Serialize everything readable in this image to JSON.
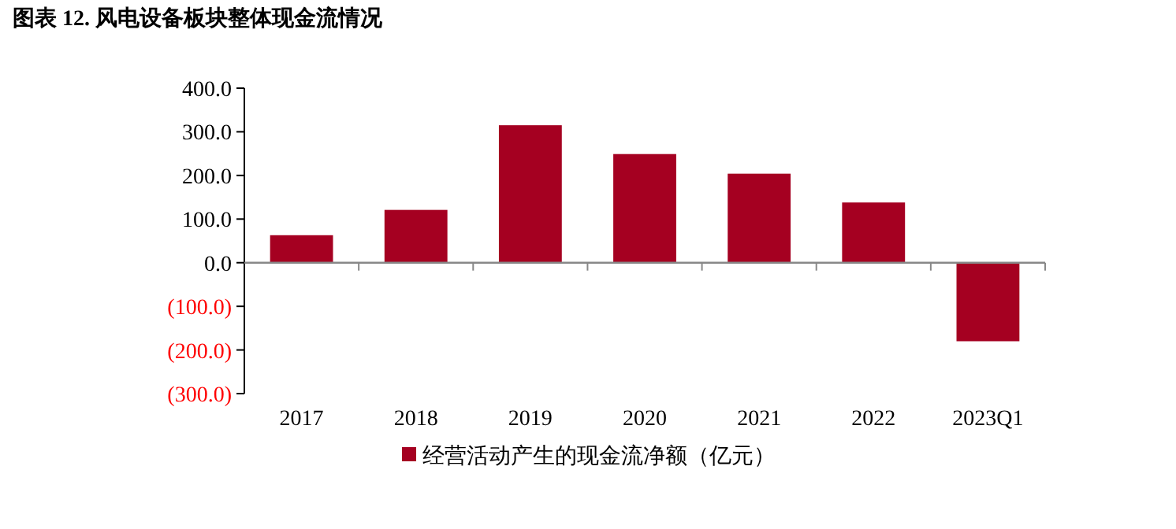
{
  "chart_data": {
    "type": "bar",
    "title": "图表 12. 风电设备板块整体现金流情况",
    "categories": [
      "2017",
      "2018",
      "2019",
      "2020",
      "2021",
      "2022",
      "2023Q1"
    ],
    "series": [
      {
        "name": "经营活动产生的现金流净额（亿元）",
        "color": "#a50021",
        "values": [
          63,
          121,
          315,
          249,
          204,
          138,
          -180
        ]
      }
    ],
    "ylim": [
      -300,
      400
    ],
    "yticks": [
      {
        "value": -300,
        "label": "(300.0)"
      },
      {
        "value": -200,
        "label": "(200.0)"
      },
      {
        "value": -100,
        "label": "(100.0)"
      },
      {
        "value": 0,
        "label": "0.0"
      },
      {
        "value": 100,
        "label": "100.0"
      },
      {
        "value": 200,
        "label": "200.0"
      },
      {
        "value": 300,
        "label": "300.0"
      },
      {
        "value": 400,
        "label": "400.0"
      }
    ],
    "legend": "bottom"
  }
}
